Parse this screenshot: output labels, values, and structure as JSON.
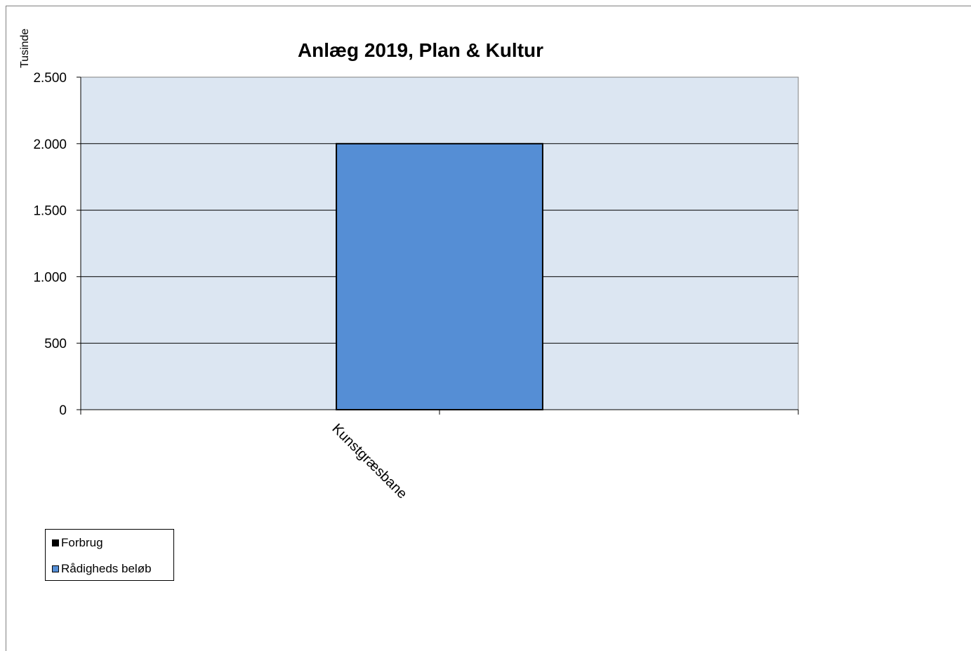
{
  "chart_data": {
    "type": "bar",
    "title": "Anlæg 2019, Plan & Kultur",
    "unit_label": "Tusinde",
    "categories": [
      "Kunstgræsbane"
    ],
    "series": [
      {
        "name": "Forbrug",
        "values": [
          0
        ],
        "color": "#000000"
      },
      {
        "name": "Rådigheds beløb",
        "values": [
          2000
        ],
        "color": "#558ED5"
      }
    ],
    "ylim": [
      0,
      2500
    ],
    "yticks": [
      0,
      500,
      1000,
      1500,
      2000,
      2500
    ],
    "ytick_labels": [
      "0",
      "500",
      "1.000",
      "1.500",
      "2.000",
      "2.500"
    ],
    "grid": true,
    "plot_background": "#DCE6F2",
    "legend_position": "bottom-left"
  }
}
